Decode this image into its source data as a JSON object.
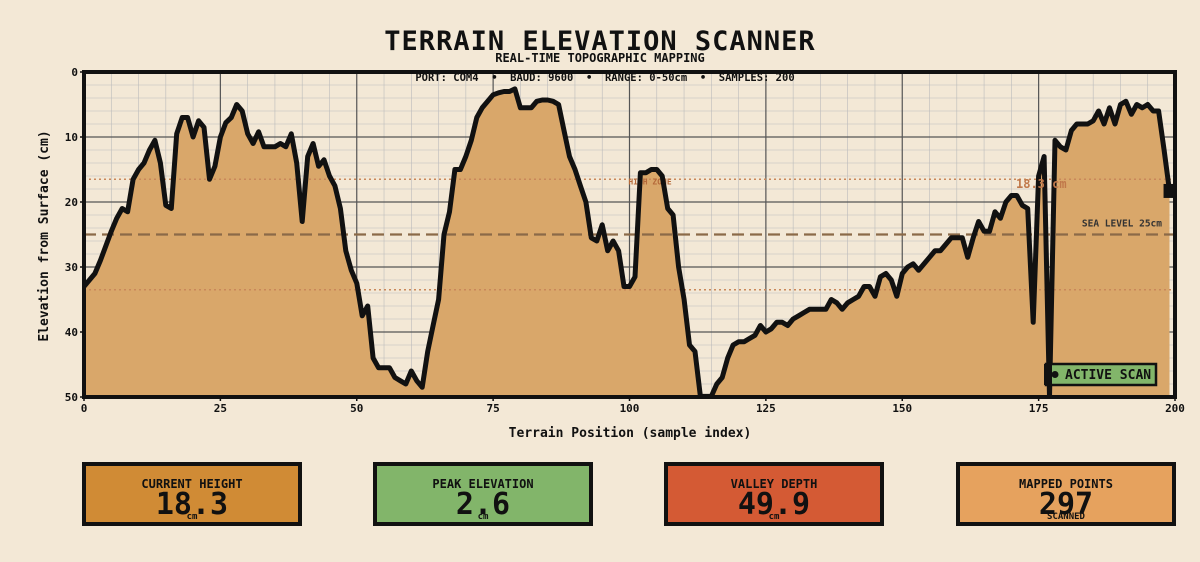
{
  "header": {
    "title": "TERRAIN ELEVATION SCANNER",
    "subtitle": "REAL-TIME TOPOGRAPHIC MAPPING",
    "info": "PORT: COM4  •  BAUD: 9600  •  RANGE: 0-50cm  •  SAMPLES: 200"
  },
  "chart_data": {
    "type": "area",
    "title": "TERRAIN ELEVATION SCANNER",
    "subtitle": "REAL-TIME TOPOGRAPHIC MAPPING",
    "xlabel": "Terrain Position (sample index)",
    "ylabel": "Elevation from Surface (cm)",
    "xlim": [
      0,
      200
    ],
    "ylim": [
      0,
      50
    ],
    "y_inverted": true,
    "grid": true,
    "xticks": [
      0,
      25,
      50,
      75,
      100,
      125,
      150,
      175,
      200
    ],
    "yticks": [
      0,
      10,
      20,
      30,
      40,
      50
    ],
    "colors": {
      "fill": "#d9a76a",
      "line": "#111111",
      "background": "#f3e8d6",
      "reference": "#8b6a48"
    },
    "reference_lines": [
      {
        "y": 25,
        "label": "SEA LEVEL 25cm",
        "style": "dashed"
      },
      {
        "y": 16.5,
        "label": "HIGH ZONE",
        "style": "dotted"
      },
      {
        "y": 33.5,
        "label": "",
        "style": "dotted"
      }
    ],
    "annotations": [
      {
        "x": 176,
        "y": 18.3,
        "label": "18.3 cm"
      },
      {
        "label": "ACTIVE SCAN"
      }
    ],
    "x": [
      0,
      2,
      3,
      5,
      6,
      7,
      8,
      9,
      10,
      11,
      12,
      13,
      14,
      15,
      16,
      17,
      18,
      19,
      20,
      21,
      22,
      23,
      24,
      25,
      26,
      27,
      28,
      29,
      30,
      31,
      32,
      33,
      34,
      35,
      36,
      37,
      38,
      39,
      40,
      41,
      42,
      43,
      44,
      45,
      46,
      47,
      48,
      49,
      50,
      51,
      52,
      53,
      54,
      55,
      56,
      57,
      58,
      59,
      60,
      61,
      62,
      63,
      64,
      65,
      66,
      67,
      68,
      69,
      70,
      71,
      72,
      73,
      74,
      75,
      76,
      77,
      78,
      79,
      80,
      81,
      82,
      83,
      84,
      85,
      86,
      87,
      88,
      89,
      90,
      91,
      92,
      93,
      94,
      95,
      96,
      97,
      98,
      99,
      100,
      101,
      102,
      103,
      104,
      105,
      106,
      107,
      108,
      109,
      110,
      111,
      112,
      113,
      114,
      115,
      116,
      117,
      118,
      119,
      120,
      121,
      122,
      123,
      124,
      125,
      126,
      127,
      128,
      129,
      130,
      131,
      132,
      133,
      134,
      135,
      136,
      137,
      138,
      139,
      140,
      141,
      142,
      143,
      144,
      145,
      146,
      147,
      148,
      149,
      150,
      151,
      152,
      153,
      154,
      155,
      156,
      157,
      158,
      159,
      160,
      161,
      162,
      163,
      164,
      165,
      166,
      167,
      168,
      169,
      170,
      171,
      172,
      173,
      174,
      175,
      176,
      177,
      178,
      179,
      180,
      181,
      182,
      183,
      184,
      185,
      186,
      187,
      188,
      189,
      190,
      191,
      192,
      193,
      194,
      195,
      196,
      197,
      198,
      199
    ],
    "values": [
      33,
      31,
      29,
      24.5,
      22.5,
      21,
      21.5,
      16.5,
      15,
      14,
      12,
      10.5,
      14,
      20.5,
      21,
      9.5,
      7,
      7,
      10,
      7.5,
      8.5,
      16.5,
      14.5,
      10,
      7.8,
      7,
      5,
      6,
      9.5,
      11,
      9.2,
      11.5,
      11.5,
      11.5,
      11,
      11.5,
      9.5,
      14,
      23,
      13,
      11,
      14.5,
      13.5,
      16,
      17.5,
      21,
      27.5,
      30.5,
      32.5,
      37.5,
      36,
      44,
      45.5,
      45.5,
      45.5,
      47,
      47.5,
      48,
      46,
      47.5,
      48.5,
      43,
      39,
      35,
      25,
      21.5,
      15,
      15,
      13,
      10.5,
      7,
      5.5,
      4.5,
      3.5,
      3.2,
      3,
      3,
      2.6,
      5.5,
      5.5,
      5.5,
      4.5,
      4.3,
      4.3,
      4.5,
      5,
      9,
      13,
      15,
      17.5,
      20,
      25.5,
      26,
      23.5,
      27.5,
      26,
      27.5,
      33,
      33,
      31.5,
      15.5,
      15.5,
      15,
      15,
      16,
      21,
      22,
      30,
      35,
      42,
      43,
      49.9,
      49.9,
      49.9,
      48,
      47,
      44,
      42,
      41.5,
      41.5,
      41,
      40.5,
      39,
      40,
      39.5,
      38.5,
      38.5,
      39,
      38,
      37.5,
      37,
      36.5,
      36.5,
      36.5,
      36.5,
      35,
      35.5,
      36.5,
      35.5,
      35,
      34.5,
      33,
      33,
      34.5,
      31.5,
      31,
      32,
      34.5,
      31,
      30,
      29.5,
      30.5,
      29.5,
      28.5,
      27.5,
      27.5,
      26.5,
      25.5,
      25.5,
      25.5,
      28.5,
      25.5,
      23,
      24.5,
      24.5,
      21.5,
      22.5,
      20,
      19,
      19,
      20.5,
      21,
      38.5,
      16,
      13,
      49.9,
      10.5,
      11.5,
      12,
      9,
      8,
      8,
      8,
      7.5,
      6,
      8,
      5.5,
      8,
      5,
      4.5,
      6.5,
      5,
      5.5,
      5,
      6,
      6,
      12,
      18.3
    ]
  },
  "cards": [
    {
      "label": "CURRENT HEIGHT",
      "value": "18.3",
      "unit": "cm",
      "color": "#d08b35"
    },
    {
      "label": "PEAK ELEVATION",
      "value": "2.6",
      "unit": "cm",
      "color": "#82b56a"
    },
    {
      "label": "VALLEY DEPTH",
      "value": "49.9",
      "unit": "cm",
      "color": "#d45a34"
    },
    {
      "label": "MAPPED POINTS",
      "value": "297",
      "unit": "SCANNED",
      "color": "#e6a25e"
    }
  ]
}
